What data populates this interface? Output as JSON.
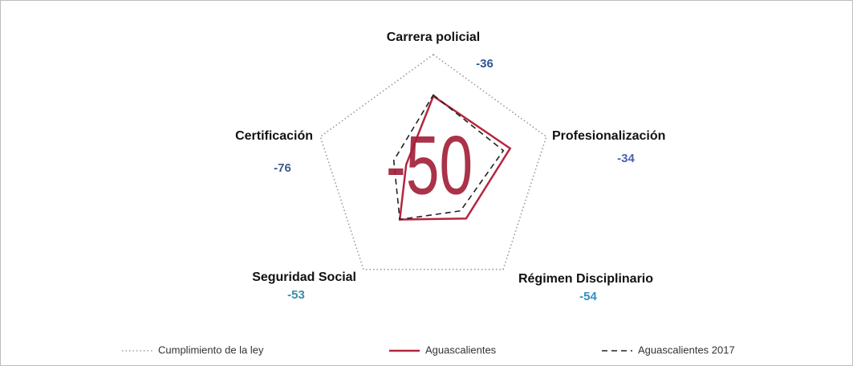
{
  "chart_data": {
    "type": "radar",
    "categories": [
      "Carrera policial",
      "Profesionalización",
      "Régimen Disciplinario",
      "Seguridad Social",
      "Certificación"
    ],
    "category_scores": [
      -36,
      -34,
      -54,
      -53,
      -76
    ],
    "score_colors": [
      "#2f5597",
      "#4a63b0",
      "#2e8fc4",
      "#3a8ea8",
      "#3b5a8f"
    ],
    "overall_score": -50,
    "overall_color": "#a3213a",
    "rlim": [
      0,
      100
    ],
    "series": [
      {
        "name": "Cumplimiento de la ley",
        "color": "#9a9a9a",
        "style": "dotted",
        "values": [
          100,
          100,
          100,
          100,
          100
        ]
      },
      {
        "name": "Aguascalientes",
        "color": "#b3263f",
        "style": "solid",
        "values": [
          65,
          68,
          47,
          48,
          24
        ]
      },
      {
        "name": "Aguascalientes 2017",
        "color": "#222222",
        "style": "dashed",
        "values": [
          66,
          62,
          39,
          48,
          35
        ]
      }
    ]
  }
}
